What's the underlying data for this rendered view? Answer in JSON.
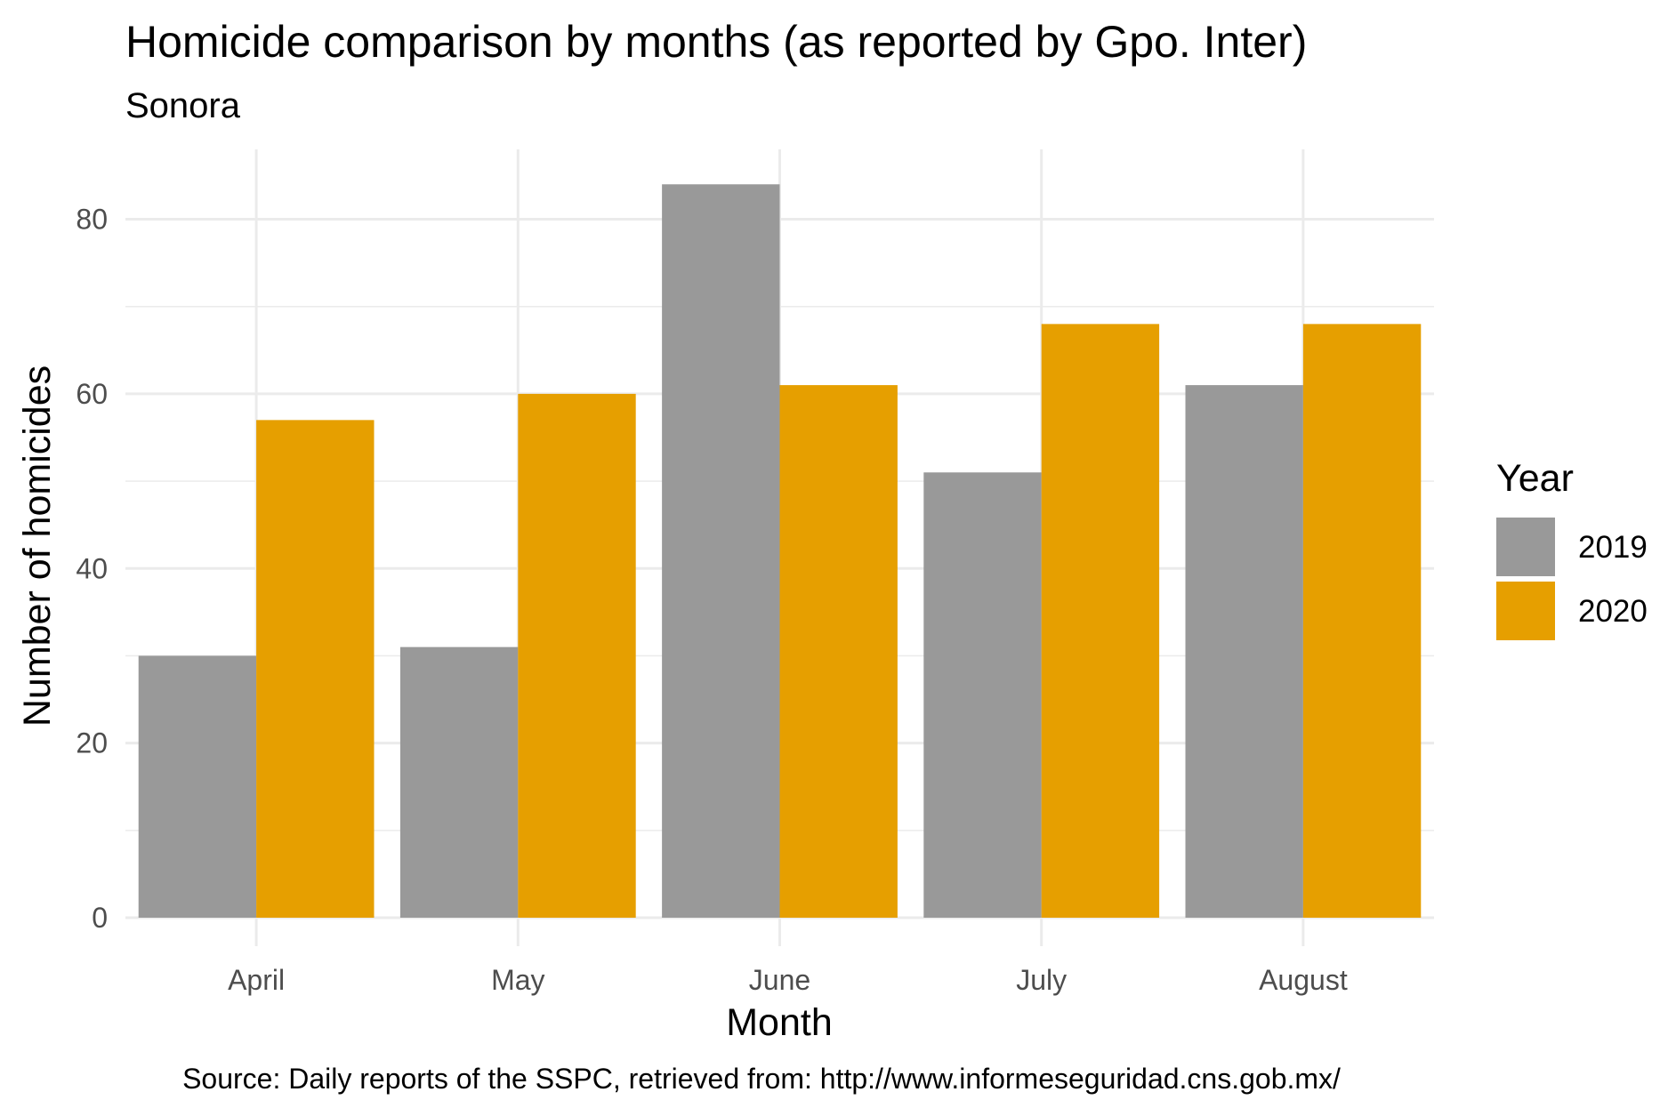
{
  "chart_data": {
    "type": "bar",
    "title": "Homicide comparison by months (as reported by Gpo. Inter)",
    "subtitle": "Sonora",
    "xlabel": "Month",
    "ylabel": "Number of homicides",
    "caption": "Source: Daily reports of the SSPC, retrieved from: http://www.informeseguridad.cns.gob.mx/",
    "categories": [
      "April",
      "May",
      "June",
      "July",
      "August"
    ],
    "series": [
      {
        "name": "2019",
        "values": [
          30,
          31,
          84,
          51,
          61
        ],
        "color": "#999999"
      },
      {
        "name": "2020",
        "values": [
          57,
          60,
          61,
          68,
          68
        ],
        "color": "#E69F00"
      }
    ],
    "ylim": [
      0,
      88
    ],
    "yticks": [
      0,
      20,
      40,
      60,
      80
    ],
    "grid": true,
    "legend": {
      "title": "Year",
      "position": "right"
    },
    "colors": {
      "grid": "#ebebeb",
      "tick_text": "#4d4d4d",
      "background": "#ffffff"
    }
  }
}
